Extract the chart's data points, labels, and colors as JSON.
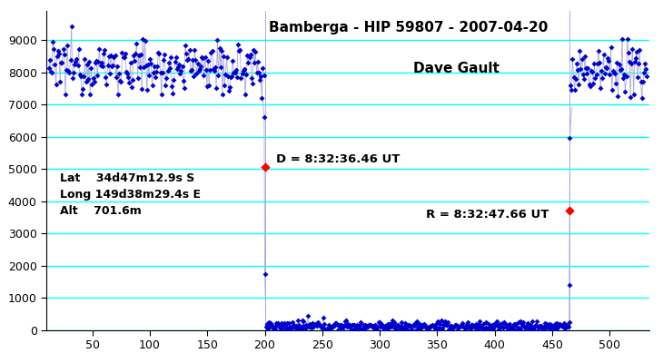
{
  "title": "Bamberga - HIP 59807 - 2007-04-20",
  "subtitle": "Dave Gault",
  "lat_text": "Lat    34d47m12.9s S",
  "long_text": "Long 149d38m29.4s E",
  "alt_text": "Alt    701.6m",
  "d_label": "D = 8:32:36.46 UT",
  "r_label": "R = 8:32:47.66 UT",
  "d_x": 200,
  "r_x": 465,
  "d_marker_y": 5050,
  "r_marker_y": 3700,
  "xlim": [
    10,
    535
  ],
  "ylim": [
    0,
    9900
  ],
  "yticks": [
    0,
    1000,
    2000,
    3000,
    4000,
    5000,
    6000,
    7000,
    8000,
    9000
  ],
  "xticks": [
    50,
    100,
    150,
    200,
    250,
    300,
    350,
    400,
    450,
    500
  ],
  "grid_color": "#00ffff",
  "bg_color": "#ffffff",
  "dot_color": "#0000cc",
  "line_color": "#aaaadd",
  "red_color": "#ff0000",
  "seed": 12345
}
